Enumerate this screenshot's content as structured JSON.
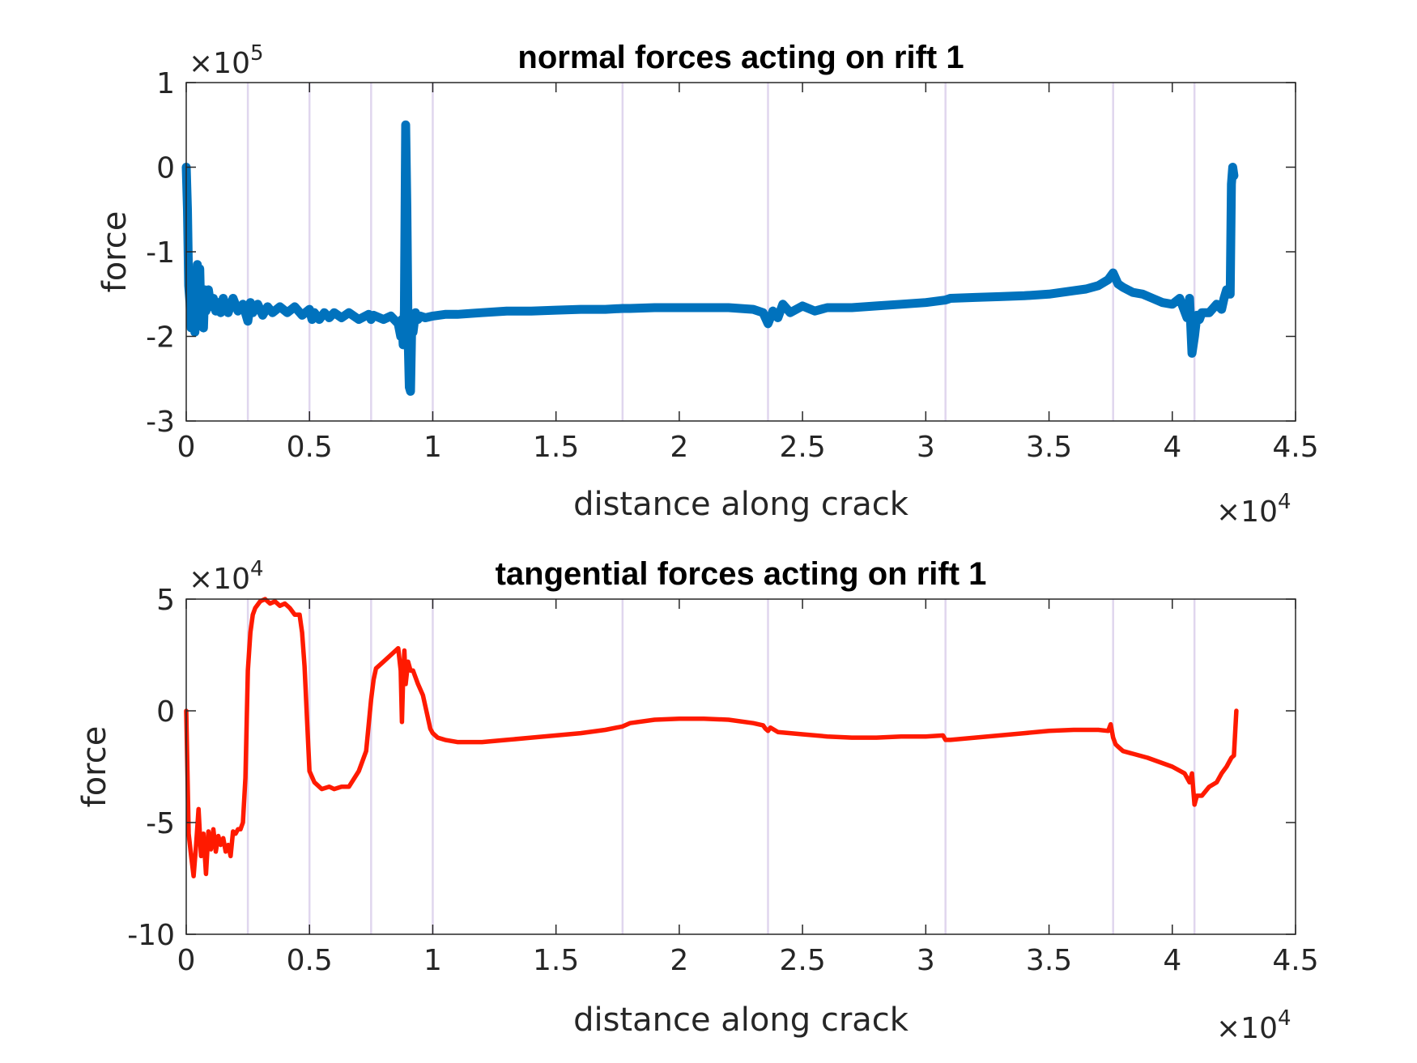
{
  "chart_data": [
    {
      "type": "line",
      "title": "normal forces acting on rift 1",
      "xlabel": "distance along crack",
      "ylabel": "force",
      "x_multiplier": "×10",
      "x_exponent": "4",
      "y_multiplier": "×10",
      "y_exponent": "5",
      "xlim": [
        0,
        4.5
      ],
      "ylim": [
        -3,
        1
      ],
      "x_ticks": [
        "0",
        "0.5",
        "1",
        "1.5",
        "2",
        "2.5",
        "3",
        "3.5",
        "4",
        "4.5"
      ],
      "y_ticks": [
        "1",
        "0",
        "-1",
        "-2",
        "-3"
      ],
      "x_tick_values": [
        0,
        0.5,
        1,
        1.5,
        2,
        2.5,
        3,
        3.5,
        4,
        4.5
      ],
      "y_tick_values": [
        1,
        0,
        -1,
        -2,
        -3
      ],
      "vertical_lines": [
        0.25,
        0.5,
        0.75,
        1.0,
        1.77,
        2.36,
        3.08,
        3.76,
        4.09
      ],
      "grid": false,
      "series": [
        {
          "color": "#0072BD",
          "line_width": 11,
          "x": [
            0,
            0.005,
            0.01,
            0.015,
            0.02,
            0.025,
            0.03,
            0.035,
            0.04,
            0.045,
            0.05,
            0.055,
            0.06,
            0.065,
            0.07,
            0.075,
            0.08,
            0.09,
            0.1,
            0.11,
            0.12,
            0.13,
            0.14,
            0.15,
            0.17,
            0.19,
            0.21,
            0.23,
            0.25,
            0.26,
            0.27,
            0.29,
            0.31,
            0.33,
            0.35,
            0.38,
            0.41,
            0.44,
            0.47,
            0.5,
            0.51,
            0.52,
            0.54,
            0.56,
            0.58,
            0.6,
            0.63,
            0.66,
            0.7,
            0.74,
            0.75,
            0.76,
            0.8,
            0.83,
            0.86,
            0.87,
            0.875,
            0.88,
            0.885,
            0.89,
            0.895,
            0.9,
            0.905,
            0.91,
            0.915,
            0.92,
            0.93,
            0.94,
            0.95,
            0.97,
            1.0,
            1.05,
            1.1,
            1.2,
            1.3,
            1.4,
            1.5,
            1.6,
            1.7,
            1.77,
            1.8,
            1.9,
            2.0,
            2.1,
            2.2,
            2.3,
            2.34,
            2.36,
            2.38,
            2.4,
            2.42,
            2.45,
            2.5,
            2.55,
            2.6,
            2.7,
            2.8,
            2.9,
            3.0,
            3.08,
            3.1,
            3.2,
            3.3,
            3.4,
            3.5,
            3.6,
            3.65,
            3.7,
            3.74,
            3.76,
            3.78,
            3.8,
            3.84,
            3.88,
            3.92,
            3.96,
            4.0,
            4.03,
            4.06,
            4.07,
            4.08,
            4.09,
            4.1,
            4.11,
            4.12,
            4.15,
            4.18,
            4.2,
            4.21,
            4.22,
            4.23,
            4.235,
            4.24,
            4.245,
            4.25
          ],
          "values": [
            0,
            -0.5,
            -1.4,
            -1.6,
            -1.9,
            -1.5,
            -1.75,
            -1.95,
            -1.7,
            -1.15,
            -1.65,
            -1.2,
            -1.85,
            -1.55,
            -1.9,
            -1.45,
            -1.7,
            -1.45,
            -1.65,
            -1.55,
            -1.7,
            -1.6,
            -1.72,
            -1.55,
            -1.72,
            -1.55,
            -1.7,
            -1.62,
            -1.82,
            -1.6,
            -1.72,
            -1.62,
            -1.75,
            -1.65,
            -1.72,
            -1.65,
            -1.72,
            -1.65,
            -1.75,
            -1.68,
            -1.8,
            -1.72,
            -1.8,
            -1.72,
            -1.78,
            -1.72,
            -1.78,
            -1.72,
            -1.8,
            -1.74,
            -1.8,
            -1.75,
            -1.8,
            -1.76,
            -1.85,
            -2.0,
            -1.8,
            -2.1,
            -1.7,
            0.5,
            -0.5,
            -2.0,
            -2.6,
            -2.65,
            -1.8,
            -1.95,
            -1.72,
            -1.8,
            -1.76,
            -1.78,
            -1.76,
            -1.74,
            -1.74,
            -1.72,
            -1.7,
            -1.7,
            -1.69,
            -1.68,
            -1.68,
            -1.67,
            -1.67,
            -1.66,
            -1.66,
            -1.66,
            -1.66,
            -1.68,
            -1.72,
            -1.85,
            -1.7,
            -1.78,
            -1.62,
            -1.72,
            -1.64,
            -1.7,
            -1.66,
            -1.66,
            -1.64,
            -1.62,
            -1.6,
            -1.57,
            -1.55,
            -1.54,
            -1.53,
            -1.52,
            -1.5,
            -1.46,
            -1.44,
            -1.4,
            -1.33,
            -1.25,
            -1.38,
            -1.42,
            -1.48,
            -1.5,
            -1.55,
            -1.6,
            -1.62,
            -1.55,
            -1.78,
            -1.55,
            -2.2,
            -2.0,
            -1.75,
            -1.8,
            -1.72,
            -1.72,
            -1.62,
            -1.68,
            -1.55,
            -1.45,
            -1.5,
            -1.5,
            -0.2,
            0,
            -0.1
          ]
        }
      ]
    },
    {
      "type": "line",
      "title": "tangential forces acting on rift 1",
      "xlabel": "distance along crack",
      "ylabel": "force",
      "x_multiplier": "×10",
      "x_exponent": "4",
      "y_multiplier": "×10",
      "y_exponent": "4",
      "xlim": [
        0,
        4.5
      ],
      "ylim": [
        -10,
        5
      ],
      "x_ticks": [
        "0",
        "0.5",
        "1",
        "1.5",
        "2",
        "2.5",
        "3",
        "3.5",
        "4",
        "4.5"
      ],
      "y_ticks": [
        "5",
        "0",
        "-5",
        "-10"
      ],
      "x_tick_values": [
        0,
        0.5,
        1,
        1.5,
        2,
        2.5,
        3,
        3.5,
        4,
        4.5
      ],
      "y_tick_values": [
        5,
        0,
        -5,
        -10
      ],
      "vertical_lines": [
        0.25,
        0.5,
        0.75,
        1.0,
        1.77,
        2.36,
        3.08,
        3.76,
        4.09
      ],
      "grid": false,
      "series": [
        {
          "color": "#FF1A00",
          "line_width": 5.5,
          "x": [
            0,
            0.01,
            0.02,
            0.03,
            0.04,
            0.05,
            0.06,
            0.07,
            0.08,
            0.09,
            0.1,
            0.11,
            0.12,
            0.13,
            0.14,
            0.15,
            0.16,
            0.17,
            0.18,
            0.19,
            0.2,
            0.21,
            0.22,
            0.23,
            0.24,
            0.25,
            0.26,
            0.27,
            0.28,
            0.3,
            0.32,
            0.34,
            0.36,
            0.38,
            0.4,
            0.42,
            0.44,
            0.46,
            0.47,
            0.48,
            0.5,
            0.52,
            0.55,
            0.58,
            0.6,
            0.63,
            0.66,
            0.7,
            0.73,
            0.75,
            0.76,
            0.77,
            0.8,
            0.83,
            0.86,
            0.87,
            0.875,
            0.88,
            0.885,
            0.89,
            0.9,
            0.91,
            0.92,
            0.94,
            0.96,
            0.98,
            0.99,
            1.0,
            1.02,
            1.05,
            1.1,
            1.2,
            1.3,
            1.4,
            1.5,
            1.6,
            1.7,
            1.77,
            1.8,
            1.9,
            2.0,
            2.1,
            2.2,
            2.3,
            2.34,
            2.35,
            2.36,
            2.37,
            2.4,
            2.5,
            2.6,
            2.7,
            2.8,
            2.9,
            3.0,
            3.07,
            3.08,
            3.1,
            3.2,
            3.3,
            3.4,
            3.5,
            3.6,
            3.7,
            3.74,
            3.75,
            3.76,
            3.77,
            3.78,
            3.8,
            3.9,
            4.0,
            4.05,
            4.07,
            4.08,
            4.09,
            4.1,
            4.12,
            4.15,
            4.18,
            4.2,
            4.22,
            4.24,
            4.25,
            4.26
          ],
          "values": [
            0,
            -5.5,
            -6.5,
            -7.4,
            -6.0,
            -4.4,
            -6.5,
            -5.5,
            -7.3,
            -5.4,
            -6.2,
            -5.3,
            -6.3,
            -5.6,
            -6.0,
            -5.7,
            -6.3,
            -6.0,
            -6.5,
            -5.4,
            -5.5,
            -5.3,
            -5.3,
            -5.0,
            -3.0,
            1.8,
            3.5,
            4.3,
            4.6,
            4.9,
            5.0,
            4.8,
            4.9,
            4.7,
            4.8,
            4.6,
            4.3,
            4.3,
            3.5,
            2.0,
            -2.7,
            -3.2,
            -3.5,
            -3.4,
            -3.5,
            -3.4,
            -3.4,
            -2.7,
            -1.8,
            0.5,
            1.4,
            1.9,
            2.2,
            2.5,
            2.8,
            1.8,
            -0.5,
            1.5,
            2.7,
            1.2,
            2.2,
            1.8,
            1.8,
            1.2,
            0.7,
            -0.3,
            -0.8,
            -1.0,
            -1.2,
            -1.3,
            -1.4,
            -1.4,
            -1.3,
            -1.2,
            -1.1,
            -1.0,
            -0.85,
            -0.7,
            -0.55,
            -0.4,
            -0.35,
            -0.35,
            -0.4,
            -0.55,
            -0.65,
            -0.8,
            -0.9,
            -0.75,
            -0.95,
            -1.05,
            -1.15,
            -1.2,
            -1.2,
            -1.15,
            -1.15,
            -1.1,
            -1.3,
            -1.3,
            -1.2,
            -1.1,
            -1.0,
            -0.9,
            -0.85,
            -0.85,
            -0.9,
            -0.6,
            -1.2,
            -1.5,
            -1.6,
            -1.8,
            -2.1,
            -2.5,
            -2.8,
            -3.2,
            -2.8,
            -4.2,
            -3.8,
            -3.8,
            -3.4,
            -3.2,
            -2.8,
            -2.5,
            -2.1,
            -2.0,
            0
          ]
        }
      ]
    }
  ]
}
